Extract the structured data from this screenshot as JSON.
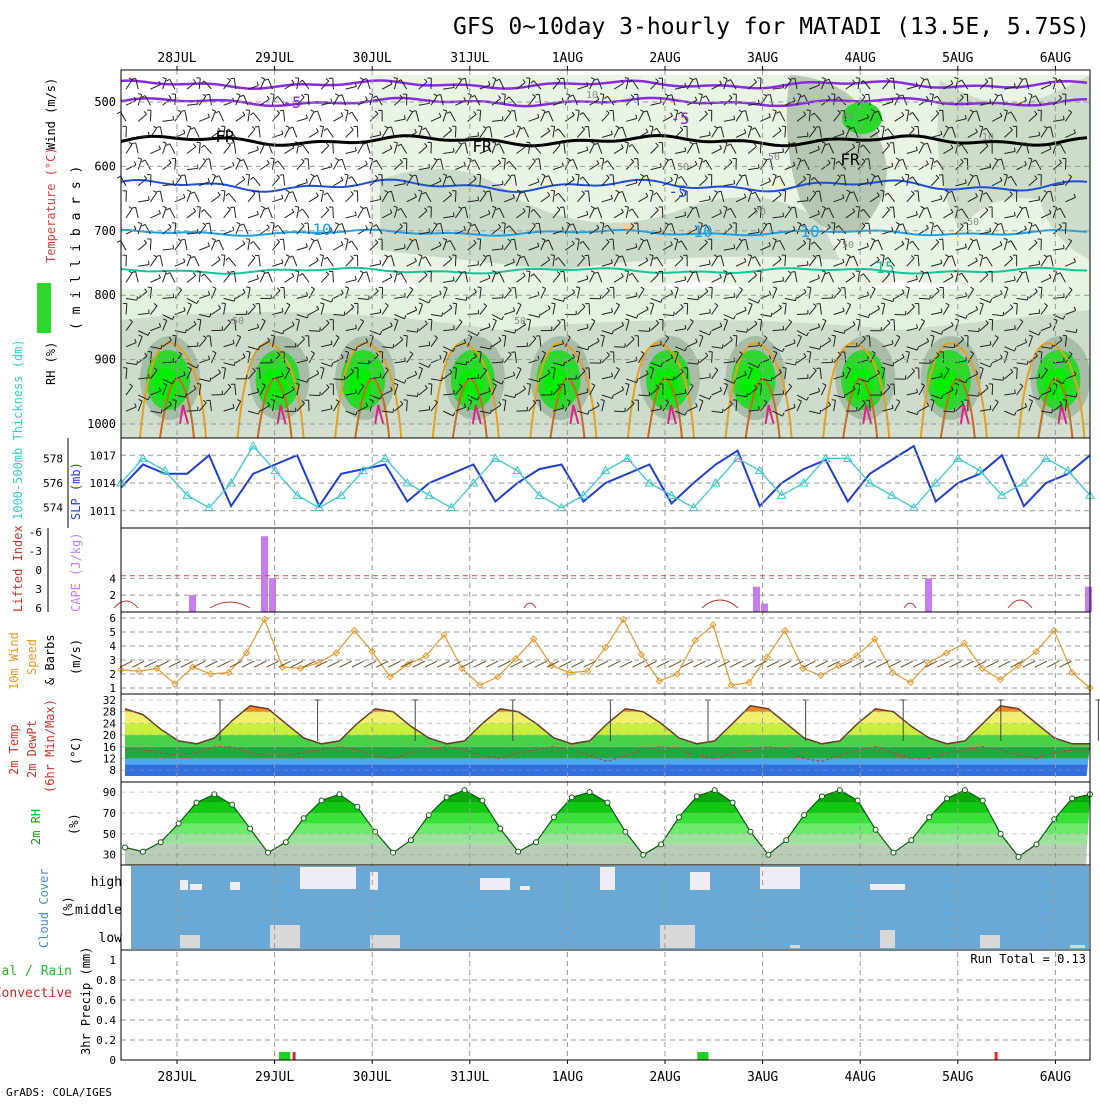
{
  "title": "GFS 0~10day 3-hourly for MATADI (13.5E, 5.75S)",
  "credit": "GrADS: COLA/IGES",
  "dates": [
    "28JUL",
    "29JUL",
    "30JUL",
    "31JUL",
    "1AUG",
    "2AUG",
    "3AUG",
    "4AUG",
    "5AUG",
    "6AUG"
  ],
  "colors": {
    "grid": "#9a9a9a",
    "rh_light": "#e3f1df",
    "rh_mid": "#c8d8c6",
    "rh_dark": "#9fb59d",
    "rh_green": "#2cd82c",
    "rh_bright": "#00ee00",
    "t_purple": "#8a2be2",
    "t_black": "#000000",
    "t_blue": "#1f4fd8",
    "t_cyan": "#1aa0e6",
    "t_teal": "#15c49a",
    "t_orange": "#e6a020",
    "t_red": "#e0208a",
    "slp": "#1f3fd0",
    "thick": "#3cc8d0",
    "cape": "#c77df0",
    "li": "#c0392b",
    "wind": "#e59a2a",
    "barb": "#6b4a2a",
    "cloud": "#6aa8d6",
    "cloud_gap": "#eeedf6",
    "cloud_low": "#d8d8d8",
    "precip_total": "#22cc22",
    "precip_conv": "#ee2222"
  },
  "panels": {
    "upper": {
      "ylabel_parts": [
        "RH (%)",
        "Temperature (°C)",
        "Wind (m/s)"
      ],
      "yunit": "( m i l l i b a r s )",
      "levels": [
        "500",
        "600",
        "700",
        "800",
        "900",
        "1000"
      ],
      "isotherm_labels": [
        "-5",
        "FR",
        "-5",
        "10",
        "15",
        "FR",
        "-5",
        "10",
        "FR",
        "10"
      ],
      "rh_labels": [
        "10",
        "50",
        "50",
        "50",
        "50",
        "10",
        "50",
        "50",
        "50",
        "70"
      ]
    },
    "slp": {
      "ylabel_left": "1000-500mb Thickness (dm)",
      "ylabel_right": "SLP (mb)",
      "thick_ticks": [
        "578",
        "576",
        "574"
      ],
      "slp_ticks": [
        "1017",
        "1014",
        "1011"
      ]
    },
    "cape": {
      "ylabel_left": "Lifted Index",
      "ylabel_right": "CAPE (J/kg)",
      "li_ticks": [
        "-6",
        "-3",
        "0",
        "3",
        "6"
      ],
      "cape_ticks": [
        "",
        "4",
        "2"
      ]
    },
    "wind": {
      "ylabel_a": "10m Wind",
      "ylabel_b": "Speed",
      "ylabel_c": "& Barbs",
      "ylabel_unit": "(m/s)",
      "ticks": [
        "6",
        "5",
        "4",
        "3",
        "2",
        "1"
      ]
    },
    "temp": {
      "ylabel_a": "2m Temp",
      "ylabel_b": "2m DewPt",
      "ylabel_c": "(6hr Min/Max)",
      "ylabel_unit": "(°C)",
      "ticks": [
        "32",
        "28",
        "24",
        "20",
        "16",
        "12",
        "8"
      ]
    },
    "rh": {
      "ylabel": "2m RH",
      "ylabel_unit": "(%)",
      "ticks": [
        "90",
        "70",
        "50",
        "30"
      ]
    },
    "cloud": {
      "ylabel": "Cloud Cover",
      "ylabel_unit": "(%)",
      "rows": [
        "high",
        "middle",
        "low"
      ]
    },
    "precip": {
      "ylabel_a": "Total / Rain",
      "ylabel_b": "Convective",
      "ylabel_c": "3hr Precip (mm)",
      "ticks": [
        "0.8",
        "0.6",
        "0.4",
        "0.2",
        "0"
      ],
      "extra_tick": "1",
      "run_total": "Run Total = 0.13"
    }
  },
  "chart_data": [
    {
      "type": "line",
      "title": "1000-500mb Thickness (dm) / SLP (mb)",
      "series": [
        {
          "name": "SLP (mb)",
          "values": [
            1013.5,
            1016,
            1015,
            1015,
            1017,
            1011.5,
            1015,
            1016,
            1017,
            1011.5,
            1015,
            1015.5,
            1016,
            1012,
            1014,
            1015,
            1016,
            1012,
            1014,
            1015.5,
            1016,
            1012,
            1014,
            1015,
            1016,
            1011.8,
            1014,
            1016,
            1017.5,
            1011.5,
            1014,
            1015.5,
            1016.5,
            1012,
            1015,
            1016.5,
            1018,
            1012,
            1014,
            1015,
            1017,
            1011.5,
            1014,
            1015,
            1017
          ]
        },
        {
          "name": "1000-500mb Thickness (dm)",
          "values": [
            576,
            578,
            577,
            575,
            574,
            576,
            579,
            577,
            575,
            574,
            575,
            577,
            578,
            576,
            575,
            574,
            576,
            578,
            577,
            575,
            574,
            575,
            577,
            578,
            576,
            575,
            574,
            576,
            578,
            577,
            575,
            576,
            578,
            578,
            576,
            575,
            574,
            576,
            578,
            577,
            575,
            576,
            578,
            577,
            575
          ]
        }
      ]
    },
    {
      "type": "bar",
      "title": "CAPE (J/kg)",
      "points": [
        [
          17,
          2
        ],
        [
          35,
          9
        ],
        [
          37,
          4
        ],
        [
          158,
          3
        ],
        [
          160,
          1
        ],
        [
          201,
          4
        ],
        [
          241,
          3
        ]
      ],
      "ylim": [
        0,
        9
      ]
    },
    {
      "type": "line",
      "title": "10m Wind Speed (m/s)",
      "values": [
        2.3,
        2.2,
        2.4,
        1.3,
        2.5,
        2.0,
        2.1,
        3.5,
        5.9,
        2.5,
        2.4,
        2.8,
        3.5,
        5.1,
        3.6,
        1.8,
        2.7,
        3.3,
        4.8,
        2.4,
        1.2,
        1.8,
        3.1,
        4.5,
        2.6,
        2.1,
        2.2,
        3.9,
        5.9,
        3.4,
        1.5,
        2.0,
        4.4,
        5.5,
        1.2,
        1.4,
        3.2,
        5.1,
        2.4,
        1.9,
        2.6,
        3.3,
        4.5,
        2.1,
        1.4,
        2.8,
        3.5,
        4.2,
        2.4,
        1.6,
        2.6,
        3.6,
        5.1,
        2.1,
        1.0
      ]
    },
    {
      "type": "area",
      "title": "2m Temp / 2m DewPt (°C)",
      "temp": [
        29,
        27,
        22,
        18,
        17,
        19,
        25,
        30,
        29,
        24,
        19,
        17,
        18,
        24,
        29,
        28,
        23,
        19,
        17,
        18,
        24,
        29,
        28,
        24,
        19,
        17,
        18,
        24,
        29,
        28,
        24,
        19,
        17,
        18,
        24,
        30,
        29,
        24,
        19,
        17,
        18,
        24,
        29,
        28,
        23,
        19,
        17,
        18,
        24,
        30,
        29,
        24,
        19,
        17,
        17
      ],
      "dewpt": [
        15,
        15,
        14,
        13,
        14,
        16,
        16,
        14,
        13,
        13,
        14,
        15,
        16,
        15,
        13,
        12,
        14,
        15,
        16,
        15,
        13,
        12,
        14,
        15,
        16,
        15,
        13,
        11,
        13,
        15,
        16,
        15,
        13,
        12,
        14,
        15,
        16,
        15,
        12,
        11,
        13,
        15,
        16,
        14,
        12,
        12,
        14,
        15,
        16,
        15,
        13,
        12,
        14,
        15,
        15
      ]
    },
    {
      "type": "area",
      "title": "2m RH (%)",
      "values": [
        37,
        33,
        42,
        60,
        80,
        88,
        78,
        55,
        32,
        42,
        65,
        82,
        88,
        76,
        52,
        32,
        44,
        68,
        85,
        92,
        82,
        55,
        33,
        42,
        66,
        85,
        90,
        80,
        52,
        30,
        40,
        66,
        86,
        92,
        80,
        52,
        30,
        44,
        68,
        86,
        92,
        82,
        54,
        32,
        44,
        66,
        84,
        92,
        82,
        50,
        28,
        40,
        64,
        84,
        88
      ]
    },
    {
      "type": "bar",
      "title": "3hr Precip (mm)",
      "series": [
        {
          "name": "Total / Rain",
          "points": [
            [
              31,
              0.02
            ],
            [
              32,
              0.02
            ],
            [
              113,
              0.02
            ],
            [
              114,
              0.02
            ]
          ]
        },
        {
          "name": "Convective",
          "points": [
            [
              33,
              0.02
            ],
            [
              168,
              0.02
            ]
          ]
        }
      ],
      "ylim": [
        0,
        1
      ]
    }
  ]
}
